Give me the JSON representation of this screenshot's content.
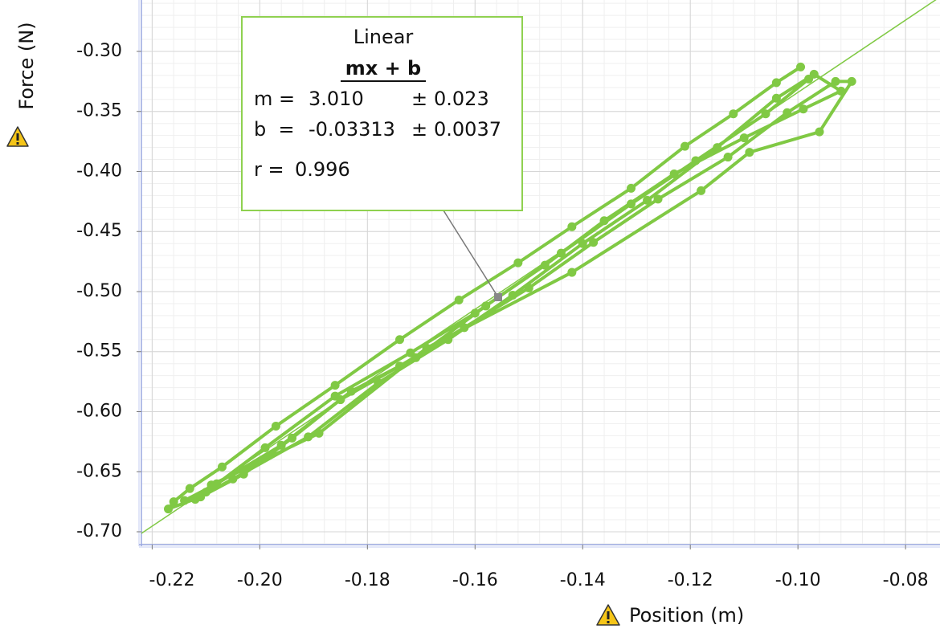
{
  "chart_data": {
    "type": "line",
    "x_label": "Position (m)",
    "y_label": "Force (N)",
    "color": "#80c944",
    "grid": true,
    "xlim": [
      -0.222,
      -0.0736
    ],
    "ylim": [
      -0.7107,
      -0.2572
    ],
    "xticks": [
      -0.22,
      {
        "value": -0.2,
        "label": "-0.20"
      },
      -0.18,
      -0.16,
      -0.14,
      -0.12,
      {
        "value": -0.1,
        "label": "-0.10"
      },
      -0.08
    ],
    "yticks": [
      {
        "value": -0.3,
        "label": "-0.30"
      },
      -0.35,
      {
        "value": -0.4,
        "label": "-0.40"
      },
      -0.45,
      {
        "value": -0.5,
        "label": "-0.50"
      },
      -0.55,
      {
        "value": -0.6,
        "label": "-0.60"
      },
      -0.65,
      {
        "value": -0.7,
        "label": "-0.70"
      }
    ],
    "x": [
      -0.0995,
      -0.104,
      -0.112,
      -0.121,
      -0.131,
      -0.142,
      -0.152,
      -0.163,
      -0.174,
      -0.186,
      -0.197,
      -0.207,
      -0.213,
      -0.216,
      -0.217,
      -0.211,
      -0.203,
      -0.194,
      -0.185,
      -0.174,
      -0.162,
      -0.15,
      -0.138,
      -0.126,
      -0.113,
      -0.102,
      -0.093,
      -0.09,
      -0.096,
      -0.109,
      -0.118,
      -0.142,
      -0.169,
      -0.189,
      -0.209,
      -0.212,
      -0.205,
      -0.191,
      -0.178,
      -0.165,
      -0.153,
      -0.14,
      -0.128,
      -0.115,
      -0.104,
      -0.097,
      -0.092,
      -0.099,
      -0.11,
      -0.123,
      -0.136,
      -0.147,
      -0.16,
      -0.172,
      -0.186,
      -0.199,
      -0.21,
      -0.214,
      -0.208,
      -0.196,
      -0.183,
      -0.171,
      -0.158,
      -0.144,
      -0.131,
      -0.119,
      -0.106,
      -0.098
    ],
    "values": [
      -0.313,
      -0.326,
      -0.352,
      -0.379,
      -0.414,
      -0.446,
      -0.476,
      -0.507,
      -0.54,
      -0.578,
      -0.612,
      -0.646,
      -0.664,
      -0.675,
      -0.681,
      -0.671,
      -0.652,
      -0.622,
      -0.59,
      -0.562,
      -0.53,
      -0.497,
      -0.459,
      -0.423,
      -0.388,
      -0.351,
      -0.325,
      -0.325,
      -0.367,
      -0.384,
      -0.416,
      -0.484,
      -0.547,
      -0.618,
      -0.661,
      -0.673,
      -0.656,
      -0.621,
      -0.576,
      -0.54,
      -0.503,
      -0.46,
      -0.424,
      -0.38,
      -0.339,
      -0.319,
      -0.333,
      -0.348,
      -0.372,
      -0.402,
      -0.441,
      -0.478,
      -0.518,
      -0.551,
      -0.587,
      -0.63,
      -0.667,
      -0.674,
      -0.66,
      -0.628,
      -0.583,
      -0.555,
      -0.512,
      -0.468,
      -0.427,
      -0.391,
      -0.352,
      -0.323
    ],
    "fit": {
      "name": "Linear",
      "equation": "mx + b",
      "m_label": "m =",
      "m": {
        "value": 3.01,
        "label": "3.010"
      },
      "m_error": 0.023,
      "b_label": "b  =",
      "b": -0.03313,
      "b_error": 0.0037,
      "pm": "±",
      "r_label": "r =",
      "r": 0.996
    }
  }
}
